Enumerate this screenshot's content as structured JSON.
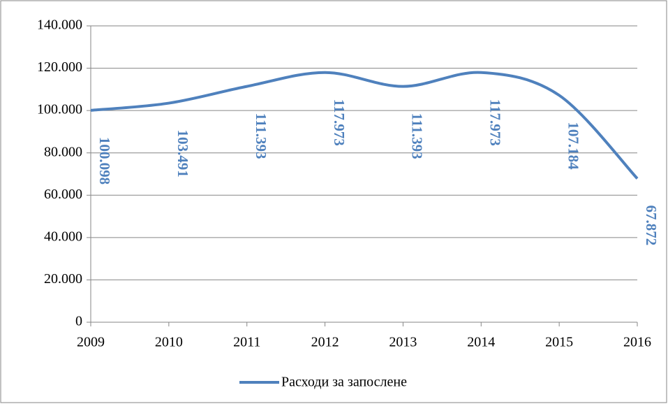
{
  "chart_data": {
    "type": "line",
    "x": [
      2009,
      2010,
      2011,
      2012,
      2013,
      2014,
      2015,
      2016
    ],
    "xlim": [
      2009,
      2016
    ],
    "xticks": [
      2009,
      2010,
      2011,
      2012,
      2013,
      2014,
      2015,
      2016
    ],
    "series": [
      {
        "name": "Расходи за запослене",
        "color": "#4f81bd",
        "values": [
          100098,
          103491,
          111393,
          117973,
          111393,
          117973,
          107184,
          67872
        ],
        "value_labels": [
          "100.098",
          "103.491",
          "111.393",
          "117.973",
          "111.393",
          "117.973",
          "107.184",
          "67.872"
        ]
      }
    ],
    "ylim": [
      0,
      140000
    ],
    "yticks": [
      0,
      {
        "value": 20000,
        "label": "20.000"
      },
      {
        "value": 40000,
        "label": "40.000"
      },
      {
        "value": 60000,
        "label": "60.000"
      },
      {
        "value": 80000,
        "label": "80.000"
      },
      {
        "value": 100000,
        "label": "100.000"
      },
      {
        "value": 120000,
        "label": "120.000"
      },
      {
        "value": 140000,
        "label": "140.000"
      }
    ],
    "grid": true,
    "legend": "bottom"
  }
}
